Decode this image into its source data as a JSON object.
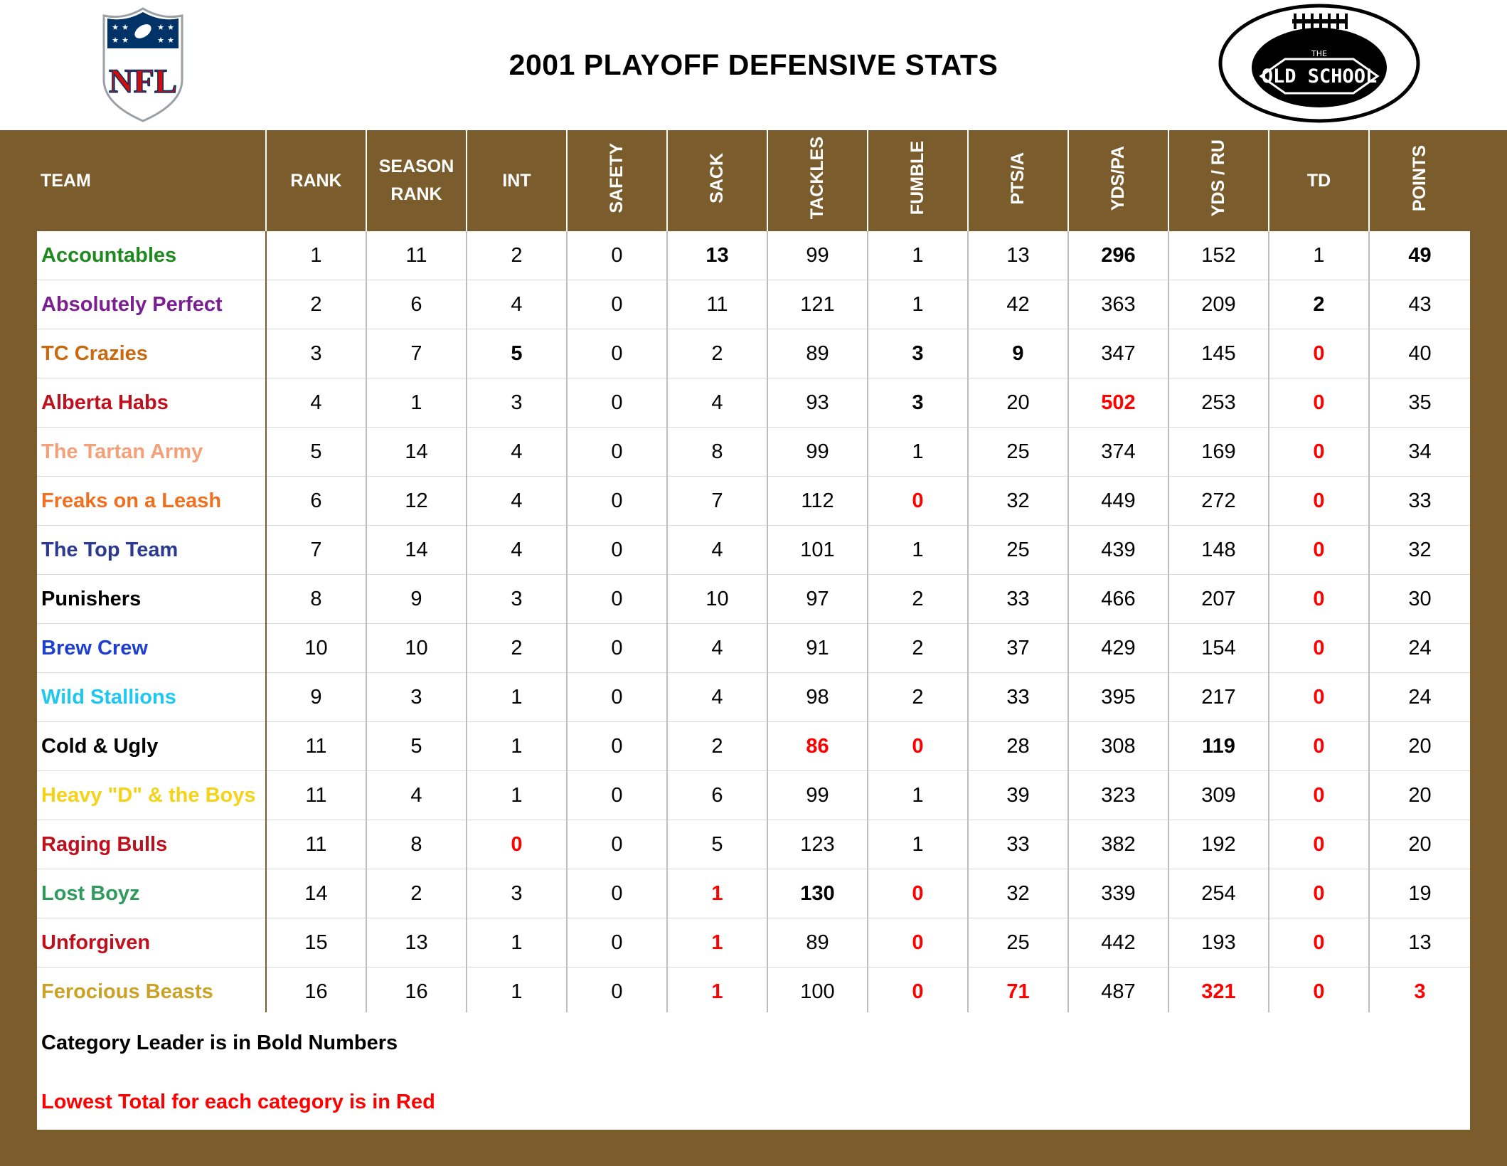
{
  "title": "2001 PLAYOFF DEFENSIVE STATS",
  "logos": {
    "left": {
      "icon": "nfl-shield-icon",
      "text": "NFL"
    },
    "right": {
      "icon": "old-school-football-icon",
      "text_top": "THE",
      "text_main": "OLD SCHOOL"
    }
  },
  "colors": {
    "frame": "#7b5d2d",
    "red": "#ff0000"
  },
  "table": {
    "headers": {
      "team": "TEAM",
      "rank": "RANK",
      "season_rank_1": "SEASON",
      "season_rank_2": "RANK",
      "int": "INT",
      "safety": "SAFETY",
      "sack": "SACK",
      "tackles": "TACKLES",
      "fumble": "FUMBLE",
      "pts_a": "PTS/A",
      "yds_pa": "YDS/PA",
      "yds_ru": "YDS / RU",
      "td": "TD",
      "points": "POINTS"
    },
    "columns": [
      "rank",
      "season_rank",
      "int",
      "safety",
      "sack",
      "tackles",
      "fumble",
      "pts_a",
      "yds_pa",
      "yds_ru",
      "td",
      "points"
    ],
    "rows": [
      {
        "team": "Accountables",
        "color": "#1e8a1e",
        "rank": "1",
        "season_rank": "11",
        "int": "2",
        "safety": "0",
        "sack": "13",
        "tackles": "99",
        "fumble": "1",
        "pts_a": "13",
        "yds_pa": "296",
        "yds_ru": "152",
        "td": "1",
        "points": "49",
        "bold": [
          "sack",
          "yds_pa",
          "points"
        ],
        "red": []
      },
      {
        "team": "Absolutely Perfect",
        "color": "#7a1f8f",
        "rank": "2",
        "season_rank": "6",
        "int": "4",
        "safety": "0",
        "sack": "11",
        "tackles": "121",
        "fumble": "1",
        "pts_a": "42",
        "yds_pa": "363",
        "yds_ru": "209",
        "td": "2",
        "points": "43",
        "bold": [
          "td"
        ],
        "red": []
      },
      {
        "team": "TC Crazies",
        "color": "#c96a10",
        "rank": "3",
        "season_rank": "7",
        "int": "5",
        "safety": "0",
        "sack": "2",
        "tackles": "89",
        "fumble": "3",
        "pts_a": "9",
        "yds_pa": "347",
        "yds_ru": "145",
        "td": "0",
        "points": "40",
        "bold": [
          "int",
          "fumble",
          "pts_a"
        ],
        "red": [
          "td"
        ]
      },
      {
        "team": "Alberta Habs",
        "color": "#c0101d",
        "rank": "4",
        "season_rank": "1",
        "int": "3",
        "safety": "0",
        "sack": "4",
        "tackles": "93",
        "fumble": "3",
        "pts_a": "20",
        "yds_pa": "502",
        "yds_ru": "253",
        "td": "0",
        "points": "35",
        "bold": [
          "fumble"
        ],
        "red": [
          "yds_pa",
          "td"
        ]
      },
      {
        "team": "The Tartan Army",
        "color": "#f4a07a",
        "rank": "5",
        "season_rank": "14",
        "int": "4",
        "safety": "0",
        "sack": "8",
        "tackles": "99",
        "fumble": "1",
        "pts_a": "25",
        "yds_pa": "374",
        "yds_ru": "169",
        "td": "0",
        "points": "34",
        "bold": [],
        "red": [
          "td"
        ]
      },
      {
        "team": "Freaks on a Leash",
        "color": "#f07020",
        "rank": "6",
        "season_rank": "12",
        "int": "4",
        "safety": "0",
        "sack": "7",
        "tackles": "112",
        "fumble": "0",
        "pts_a": "32",
        "yds_pa": "449",
        "yds_ru": "272",
        "td": "0",
        "points": "33",
        "bold": [],
        "red": [
          "fumble",
          "td"
        ]
      },
      {
        "team": "The Top Team",
        "color": "#2b3990",
        "rank": "7",
        "season_rank": "14",
        "int": "4",
        "safety": "0",
        "sack": "4",
        "tackles": "101",
        "fumble": "1",
        "pts_a": "25",
        "yds_pa": "439",
        "yds_ru": "148",
        "td": "0",
        "points": "32",
        "bold": [],
        "red": [
          "td"
        ]
      },
      {
        "team": "Punishers",
        "color": "#000000",
        "rank": "8",
        "season_rank": "9",
        "int": "3",
        "safety": "0",
        "sack": "10",
        "tackles": "97",
        "fumble": "2",
        "pts_a": "33",
        "yds_pa": "466",
        "yds_ru": "207",
        "td": "0",
        "points": "30",
        "bold": [],
        "red": [
          "td"
        ]
      },
      {
        "team": "Brew Crew",
        "color": "#1d3fcf",
        "rank": "10",
        "season_rank": "10",
        "int": "2",
        "safety": "0",
        "sack": "4",
        "tackles": "91",
        "fumble": "2",
        "pts_a": "37",
        "yds_pa": "429",
        "yds_ru": "154",
        "td": "0",
        "points": "24",
        "bold": [],
        "red": [
          "td"
        ]
      },
      {
        "team": "Wild Stallions",
        "color": "#1ec8f0",
        "rank": "9",
        "season_rank": "3",
        "int": "1",
        "safety": "0",
        "sack": "4",
        "tackles": "98",
        "fumble": "2",
        "pts_a": "33",
        "yds_pa": "395",
        "yds_ru": "217",
        "td": "0",
        "points": "24",
        "bold": [],
        "red": [
          "td"
        ]
      },
      {
        "team": "Cold & Ugly",
        "color": "#000000",
        "rank": "11",
        "season_rank": "5",
        "int": "1",
        "safety": "0",
        "sack": "2",
        "tackles": "86",
        "fumble": "0",
        "pts_a": "28",
        "yds_pa": "308",
        "yds_ru": "119",
        "td": "0",
        "points": "20",
        "bold": [
          "yds_ru"
        ],
        "red": [
          "tackles",
          "fumble",
          "td"
        ]
      },
      {
        "team": "Heavy \"D\" & the Boys",
        "color": "#f5d318",
        "rank": "11",
        "season_rank": "4",
        "int": "1",
        "safety": "0",
        "sack": "6",
        "tackles": "99",
        "fumble": "1",
        "pts_a": "39",
        "yds_pa": "323",
        "yds_ru": "309",
        "td": "0",
        "points": "20",
        "bold": [],
        "red": [
          "td"
        ]
      },
      {
        "team": "Raging Bulls",
        "color": "#c0101d",
        "rank": "11",
        "season_rank": "8",
        "int": "0",
        "safety": "0",
        "sack": "5",
        "tackles": "123",
        "fumble": "1",
        "pts_a": "33",
        "yds_pa": "382",
        "yds_ru": "192",
        "td": "0",
        "points": "20",
        "bold": [],
        "red": [
          "int",
          "td"
        ]
      },
      {
        "team": "Lost Boyz",
        "color": "#2e9a5c",
        "rank": "14",
        "season_rank": "2",
        "int": "3",
        "safety": "0",
        "sack": "1",
        "tackles": "130",
        "fumble": "0",
        "pts_a": "32",
        "yds_pa": "339",
        "yds_ru": "254",
        "td": "0",
        "points": "19",
        "bold": [
          "tackles"
        ],
        "red": [
          "sack",
          "fumble",
          "td"
        ]
      },
      {
        "team": "Unforgiven",
        "color": "#c0101d",
        "rank": "15",
        "season_rank": "13",
        "int": "1",
        "safety": "0",
        "sack": "1",
        "tackles": "89",
        "fumble": "0",
        "pts_a": "25",
        "yds_pa": "442",
        "yds_ru": "193",
        "td": "0",
        "points": "13",
        "bold": [],
        "red": [
          "sack",
          "fumble",
          "td"
        ]
      },
      {
        "team": "Ferocious Beasts",
        "color": "#c9a227",
        "rank": "16",
        "season_rank": "16",
        "int": "1",
        "safety": "0",
        "sack": "1",
        "tackles": "100",
        "fumble": "0",
        "pts_a": "71",
        "yds_pa": "487",
        "yds_ru": "321",
        "td": "0",
        "points": "3",
        "bold": [],
        "red": [
          "sack",
          "fumble",
          "pts_a",
          "yds_ru",
          "td",
          "points"
        ]
      }
    ]
  },
  "notes": {
    "leader": "Category Leader is in Bold Numbers",
    "lowest": "Lowest Total for each category is in Red"
  }
}
